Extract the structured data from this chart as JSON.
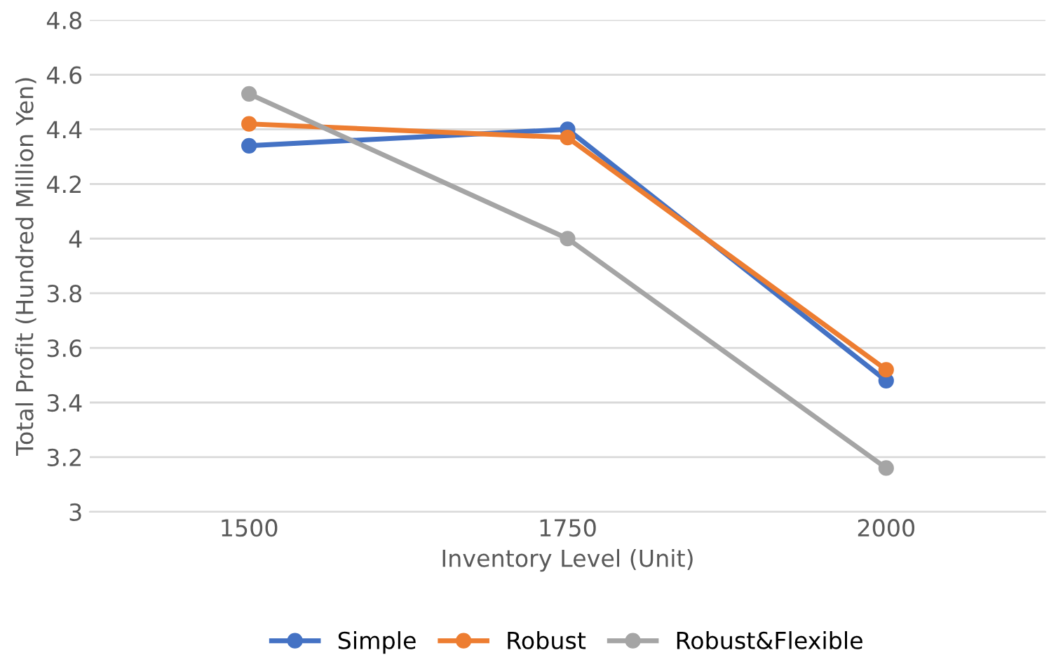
{
  "chart_data": {
    "type": "line",
    "xlabel": "Inventory Level (Unit)",
    "ylabel": "Total Profit (Hundred Million Yen)",
    "categories": [
      "1500",
      "1750",
      "2000"
    ],
    "series": [
      {
        "name": "Simple",
        "color": "#4472c4",
        "values": [
          4.34,
          4.4,
          3.48
        ]
      },
      {
        "name": "Robust",
        "color": "#ed7d31",
        "values": [
          4.42,
          4.37,
          3.52
        ]
      },
      {
        "name": "Robust&Flexible",
        "color": "#a5a5a5",
        "values": [
          4.53,
          4.0,
          3.16
        ]
      }
    ],
    "ylim": [
      3,
      4.8
    ],
    "yticks": [
      3,
      3.2,
      3.4,
      3.6,
      3.8,
      4,
      4.2,
      4.4,
      4.6,
      4.8
    ],
    "grid": "y",
    "legend": "bottom",
    "marker": "circle",
    "line_style": "solid"
  }
}
